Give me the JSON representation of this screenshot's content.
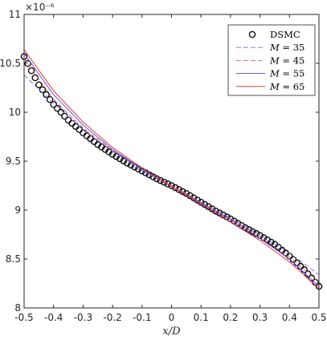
{
  "chart_data": {
    "type": "line",
    "title": "",
    "xlabel": "x/D",
    "ylabel": "",
    "xlim": [
      -0.5,
      0.5
    ],
    "ylim": [
      8,
      11
    ],
    "y_multiplier_label": "×10⁻⁶",
    "grid": false,
    "legend_position": "top-right",
    "x_ticks": [
      -0.5,
      -0.4,
      -0.3,
      -0.2,
      -0.1,
      0,
      0.1,
      0.2,
      0.3,
      0.4,
      0.5
    ],
    "x_tick_labels": [
      "-0.5",
      "-0.4",
      "-0.3",
      "-0.2",
      "-0.1",
      "0",
      "0.1",
      "0.2",
      "0.3",
      "0.4",
      "0.5"
    ],
    "y_ticks": [
      8,
      8.5,
      9,
      9.5,
      10,
      10.5,
      11
    ],
    "y_tick_labels": [
      "8",
      "8.5",
      "9",
      "9.5",
      "10",
      "10.5",
      "11"
    ],
    "series": [
      {
        "name": "DSMC",
        "style": "markers",
        "marker": "circle-open",
        "color": "#000000",
        "x": [
          -0.5,
          -0.45,
          -0.4,
          -0.35,
          -0.3,
          -0.25,
          -0.2,
          -0.15,
          -0.1,
          -0.05,
          0,
          0.05,
          0.1,
          0.15,
          0.2,
          0.25,
          0.3,
          0.35,
          0.4,
          0.45,
          0.5
        ],
        "y": [
          10.57,
          10.28,
          10.08,
          9.92,
          9.79,
          9.67,
          9.57,
          9.48,
          9.4,
          9.32,
          9.25,
          9.17,
          9.08,
          8.99,
          8.91,
          8.82,
          8.74,
          8.65,
          8.53,
          8.39,
          8.22
        ]
      },
      {
        "name": "M = 35",
        "style": "dashed",
        "color": "#6f6fe0",
        "x": [
          -0.5,
          -0.4,
          -0.3,
          -0.2,
          -0.1,
          0,
          0.1,
          0.2,
          0.3,
          0.4,
          0.5
        ],
        "y": [
          10.38,
          10.09,
          9.82,
          9.6,
          9.41,
          9.24,
          9.08,
          8.92,
          8.75,
          8.56,
          8.34
        ]
      },
      {
        "name": "M = 45",
        "style": "dashed",
        "color": "#e06060",
        "x": [
          -0.5,
          -0.4,
          -0.3,
          -0.2,
          -0.1,
          0,
          0.1,
          0.2,
          0.3,
          0.4,
          0.5
        ],
        "y": [
          10.55,
          10.13,
          9.84,
          9.61,
          9.42,
          9.25,
          9.08,
          8.91,
          8.73,
          8.52,
          8.26
        ]
      },
      {
        "name": "M = 55",
        "style": "solid",
        "color": "#4a4ae8",
        "x": [
          -0.5,
          -0.4,
          -0.3,
          -0.2,
          -0.1,
          0,
          0.1,
          0.2,
          0.3,
          0.4,
          0.5
        ],
        "y": [
          10.6,
          10.18,
          9.87,
          9.62,
          9.42,
          9.24,
          9.07,
          8.9,
          8.71,
          8.5,
          8.22
        ]
      },
      {
        "name": "M = 65",
        "style": "solid",
        "color": "#e82020",
        "x": [
          -0.5,
          -0.4,
          -0.3,
          -0.2,
          -0.1,
          0,
          0.1,
          0.2,
          0.3,
          0.4,
          0.5
        ],
        "y": [
          10.64,
          10.22,
          9.9,
          9.64,
          9.43,
          9.24,
          9.06,
          8.88,
          8.69,
          8.47,
          8.2
        ]
      }
    ],
    "legend": {
      "entries": [
        {
          "prefix": "",
          "label": "DSMC"
        },
        {
          "prefix": "M",
          "label": " = 35"
        },
        {
          "prefix": "M",
          "label": " = 45"
        },
        {
          "prefix": "M",
          "label": " = 55"
        },
        {
          "prefix": "M",
          "label": " = 65"
        }
      ]
    }
  }
}
